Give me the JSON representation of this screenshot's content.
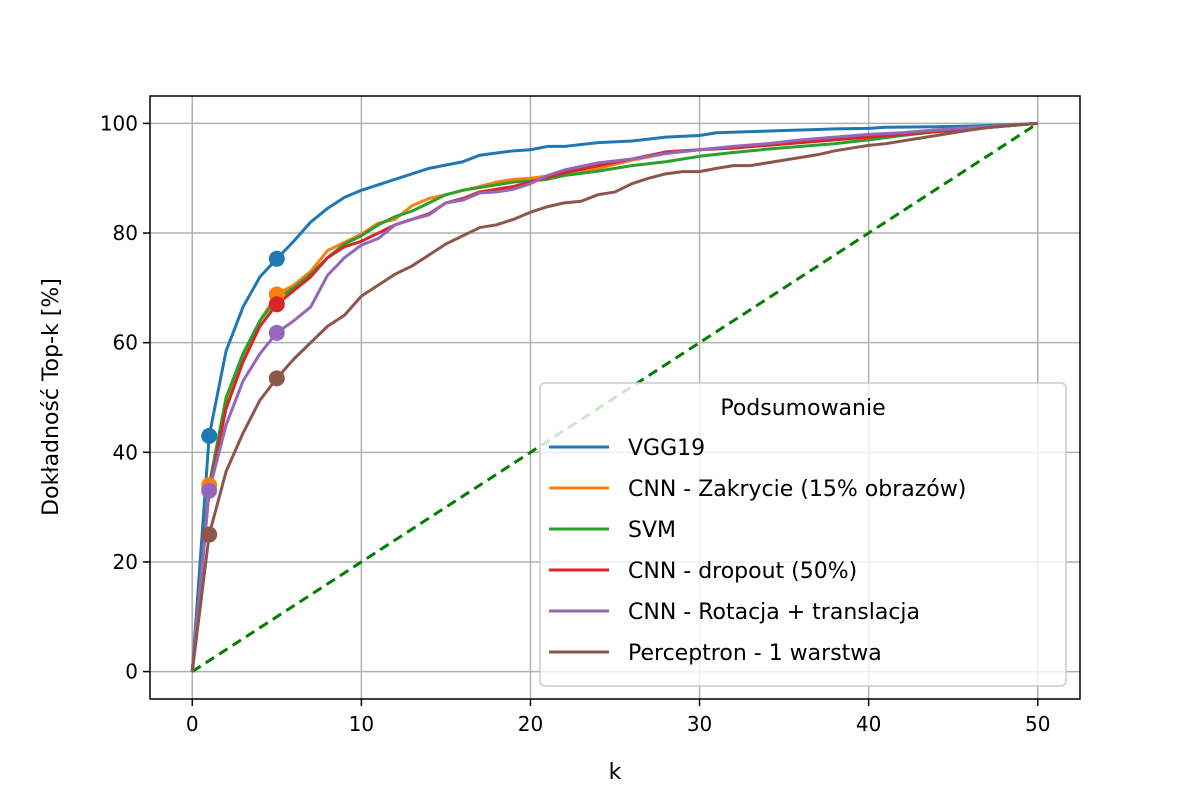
{
  "chart_data": {
    "type": "line",
    "xlabel": "k",
    "ylabel": "Dokładność Top-k [%]",
    "xlim": [
      -2.5,
      52.5
    ],
    "ylim": [
      -5,
      105
    ],
    "xticks": [
      0,
      10,
      20,
      30,
      40,
      50
    ],
    "yticks": [
      0,
      20,
      40,
      60,
      80,
      100
    ],
    "grid": true,
    "legend": {
      "title": "Podsumowanie",
      "position": "lower-right"
    },
    "series": [
      {
        "name": "VGG19",
        "color": "#1f77b4",
        "x": [
          0,
          1,
          2,
          3,
          4,
          5,
          6,
          7,
          8,
          9,
          10,
          12,
          14,
          16,
          17,
          19,
          20,
          21,
          22,
          24,
          26,
          28,
          30,
          31,
          33,
          35,
          37,
          38,
          40,
          41,
          44,
          46,
          48,
          50
        ],
        "y": [
          0,
          43,
          58.5,
          66.5,
          72,
          75.3,
          78.5,
          82,
          84.5,
          86.5,
          87.8,
          89.8,
          91.8,
          93,
          94.2,
          95,
          95.2,
          95.8,
          95.8,
          96.5,
          96.8,
          97.5,
          97.8,
          98.3,
          98.5,
          98.7,
          98.9,
          99,
          99.1,
          99.3,
          99.4,
          99.5,
          99.7,
          100
        ]
      },
      {
        "name": "CNN - Zakrycie (15% obrazów)",
        "color": "#ff7f0e",
        "x": [
          0,
          1,
          2,
          3,
          4,
          5,
          6,
          7,
          8,
          9,
          10,
          11,
          12,
          13,
          14,
          15,
          16,
          17,
          18,
          19,
          20,
          22,
          24,
          26,
          28,
          30,
          32,
          34,
          36,
          38,
          40,
          42,
          44,
          46,
          48,
          50
        ],
        "y": [
          0,
          34,
          49,
          57.5,
          64,
          68.8,
          70.5,
          73,
          76.8,
          78.3,
          79.8,
          81.8,
          82.5,
          85,
          86.3,
          87,
          87.8,
          88.5,
          89.3,
          89.8,
          90,
          90.8,
          91.8,
          93.3,
          94.5,
          95.2,
          95.7,
          96.3,
          96.8,
          97.2,
          97.8,
          98.3,
          98.8,
          99.2,
          99.6,
          100
        ]
      },
      {
        "name": "SVM",
        "color": "#2ca02c",
        "x": [
          0,
          1,
          2,
          3,
          4,
          5,
          6,
          7,
          8,
          9,
          10,
          11,
          12,
          13,
          14,
          15,
          16,
          17,
          18,
          19,
          20,
          21,
          22,
          24,
          26,
          28,
          30,
          32,
          34,
          36,
          38,
          40,
          42,
          44,
          46,
          48,
          50
        ],
        "y": [
          0,
          34,
          50,
          58,
          64,
          68,
          70,
          72.5,
          75.5,
          78,
          79.5,
          81.5,
          83,
          84,
          85.5,
          87,
          87.8,
          88.3,
          88.8,
          89.3,
          89.5,
          89.8,
          90.5,
          91.3,
          92.3,
          93,
          94,
          94.7,
          95.3,
          95.8,
          96.3,
          97,
          97.8,
          98.5,
          99,
          99.5,
          100
        ]
      },
      {
        "name": "CNN - dropout (50%)",
        "color": "#d62728",
        "x": [
          0,
          1,
          2,
          3,
          4,
          5,
          6,
          7,
          8,
          9,
          10,
          11,
          12,
          13,
          14,
          15,
          16,
          17,
          18,
          19,
          20,
          22,
          24,
          26,
          28,
          30,
          32,
          34,
          36,
          38,
          40,
          42,
          44,
          46,
          48,
          50
        ],
        "y": [
          0,
          33,
          48,
          56.5,
          63,
          67,
          69.5,
          72,
          75.5,
          77.5,
          78.5,
          80,
          81.5,
          82.5,
          83.5,
          85.5,
          86.3,
          87.5,
          88,
          88.5,
          89.3,
          91,
          92.3,
          93.5,
          94.8,
          95.2,
          95.5,
          96,
          96.5,
          97,
          97.5,
          98,
          98.5,
          99,
          99.5,
          100
        ]
      },
      {
        "name": "CNN - Rotacja + translacja",
        "color": "#9467bd",
        "x": [
          0,
          1,
          2,
          3,
          4,
          5,
          6,
          7,
          8,
          9,
          10,
          11,
          12,
          13,
          14,
          15,
          16,
          17,
          18,
          19,
          20,
          21,
          22,
          24,
          26,
          28,
          30,
          32,
          34,
          36,
          38,
          40,
          42,
          44,
          46,
          48,
          50
        ],
        "y": [
          0,
          33,
          45,
          53,
          58,
          61.8,
          64,
          66.5,
          72.3,
          75.5,
          77.8,
          79,
          81.5,
          82.5,
          83.3,
          85.5,
          86,
          87.3,
          87.5,
          88,
          89,
          90.5,
          91.5,
          92.8,
          93.5,
          94.5,
          95.2,
          95.8,
          96.3,
          97,
          97.5,
          98,
          98.3,
          98.8,
          99.2,
          99.6,
          100
        ]
      },
      {
        "name": "Perceptron - 1 warstwa",
        "color": "#8c564b",
        "x": [
          0,
          1,
          2,
          3,
          4,
          5,
          6,
          7,
          8,
          9,
          10,
          11,
          12,
          13,
          14,
          15,
          16,
          17,
          18,
          19,
          20,
          21,
          22,
          23,
          24,
          25,
          26,
          27,
          28,
          29,
          30,
          31,
          32,
          33,
          34,
          35,
          36,
          37,
          38,
          39,
          40,
          41,
          42,
          43,
          44,
          45,
          46,
          47,
          48,
          49,
          50
        ],
        "y": [
          0,
          25,
          36.5,
          43.5,
          49.5,
          53.5,
          57,
          60,
          63,
          65,
          68.5,
          70.5,
          72.5,
          74,
          76,
          78,
          79.5,
          81,
          81.5,
          82.5,
          83.8,
          84.8,
          85.5,
          85.8,
          87,
          87.5,
          89,
          90,
          90.8,
          91.2,
          91.2,
          91.8,
          92.3,
          92.3,
          92.8,
          93.3,
          93.8,
          94.3,
          95,
          95.5,
          96,
          96.3,
          96.8,
          97.3,
          97.8,
          98.3,
          98.8,
          99.2,
          99.5,
          99.8,
          100
        ]
      },
      {
        "name": "",
        "color": "#008000",
        "dashed": true,
        "x": [
          0,
          50
        ],
        "y": [
          0,
          100
        ]
      }
    ],
    "highlight_points": [
      {
        "series": 0,
        "points": [
          [
            1,
            43
          ],
          [
            5,
            75.3
          ]
        ]
      },
      {
        "series": 1,
        "points": [
          [
            1,
            34
          ],
          [
            5,
            68.8
          ]
        ]
      },
      {
        "series": 3,
        "points": [
          [
            5,
            67
          ]
        ]
      },
      {
        "series": 4,
        "points": [
          [
            1,
            33
          ],
          [
            5,
            61.8
          ]
        ]
      },
      {
        "series": 5,
        "points": [
          [
            1,
            25
          ],
          [
            5,
            53.5
          ]
        ]
      }
    ]
  }
}
